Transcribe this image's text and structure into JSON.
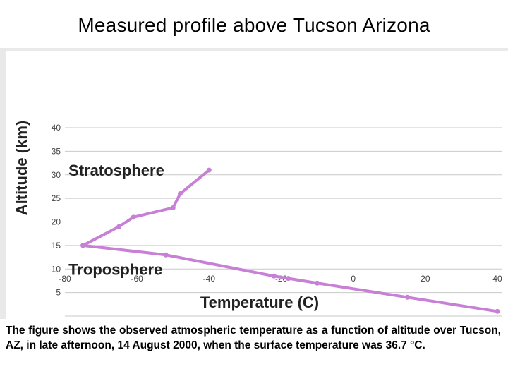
{
  "title": "Measured profile above Tucson Arizona",
  "caption": "The figure shows the observed atmospheric temperature as a function of altitude over Tucson, AZ, in late afternoon, 14 August 2000, when the surface temperature was 36.7 °C.",
  "chart_data": {
    "type": "line",
    "xlabel": "Temperature (C)",
    "ylabel": "Altitude (km)",
    "xlim": [
      -80,
      40
    ],
    "ylim": [
      0,
      40
    ],
    "x_ticks": [
      -80,
      -60,
      -40,
      -20,
      0,
      20,
      40
    ],
    "y_ticks": [
      5,
      10,
      15,
      20,
      25,
      30,
      35,
      40
    ],
    "grid": "horizontal",
    "annotations": [
      {
        "text": "Stratosphere",
        "x": -79,
        "y": 31
      },
      {
        "text": "Troposphere",
        "x": -79,
        "y": 10
      }
    ],
    "series": [
      {
        "color": "#c87fd6",
        "x": [
          40,
          15,
          -10,
          -18,
          -22,
          -52,
          -75,
          -65,
          -61,
          -50,
          -48,
          -40
        ],
        "y": [
          1,
          4,
          7,
          8,
          8.5,
          13,
          15,
          19,
          21,
          23,
          26,
          31
        ]
      }
    ]
  }
}
